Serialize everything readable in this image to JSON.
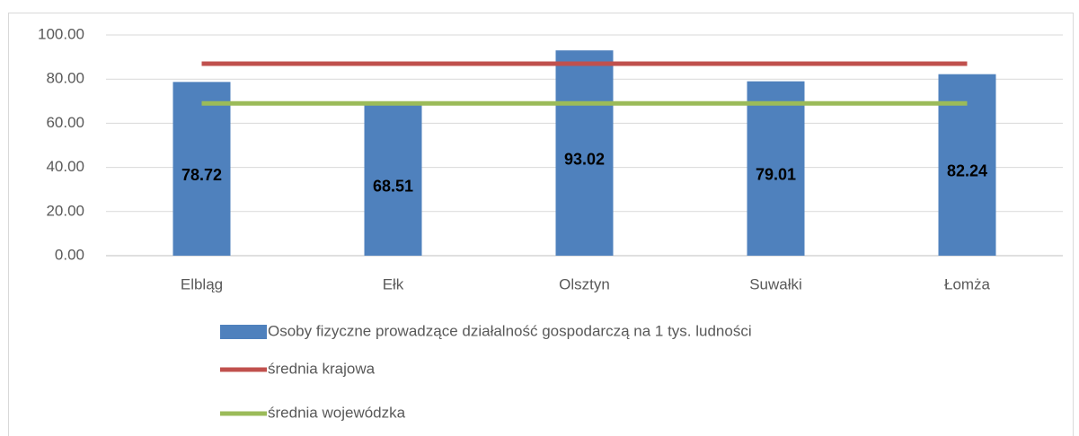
{
  "chart_data": {
    "type": "bar",
    "categories": [
      "Elbląg",
      "Ełk",
      "Olsztyn",
      "Suwałki",
      "Łomża"
    ],
    "series": [
      {
        "name": "Osoby fizyczne prowadzące działalność gospodarczą na 1 tys. ludności",
        "type": "bar",
        "color": "#4f81bd",
        "values": [
          78.72,
          68.51,
          93.02,
          79.01,
          82.24
        ]
      },
      {
        "name": "średnia krajowa",
        "type": "line",
        "color": "#c0504d",
        "values": [
          87,
          87,
          87,
          87,
          87
        ]
      },
      {
        "name": "średnia wojewódzka",
        "type": "line",
        "color": "#9bbb59",
        "values": [
          69,
          69,
          69,
          69,
          69
        ]
      }
    ],
    "ylim": [
      0,
      100
    ],
    "yticks": [
      {
        "value": 0,
        "label": "0.00"
      },
      {
        "value": 20,
        "label": "20.00"
      },
      {
        "value": 40,
        "label": "40.00"
      },
      {
        "value": 60,
        "label": "60.00"
      },
      {
        "value": 80,
        "label": "80.00"
      },
      {
        "value": 100,
        "label": "100.00"
      }
    ],
    "grid": true,
    "legend": "bottom"
  }
}
